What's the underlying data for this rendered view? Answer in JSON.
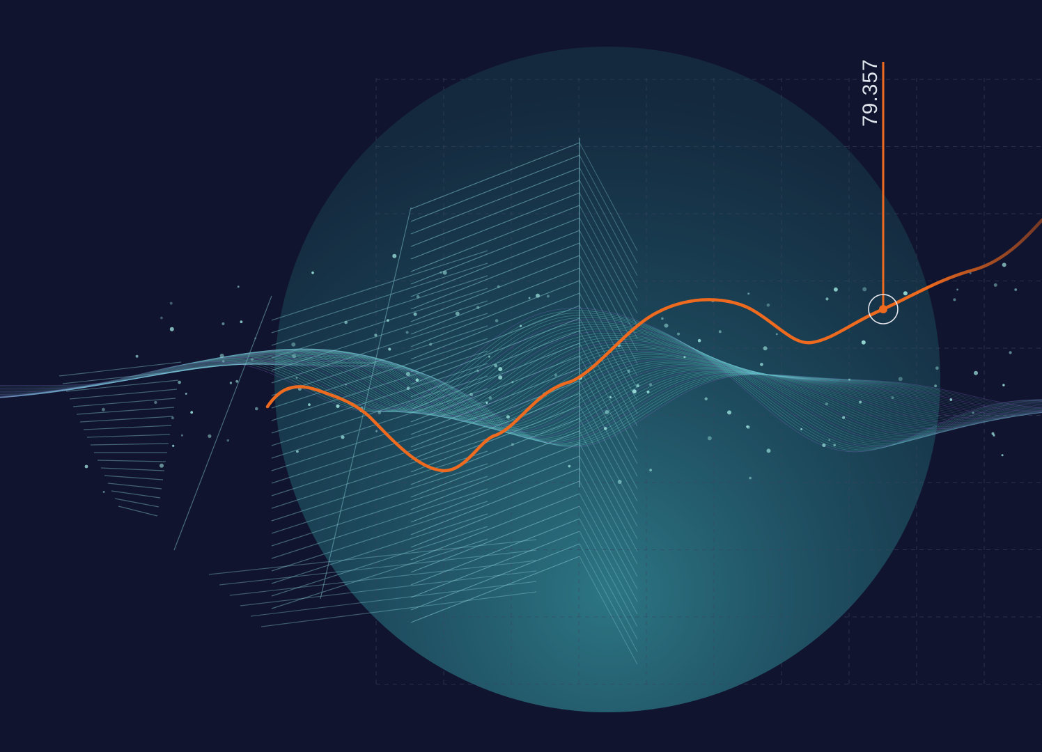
{
  "illustration": {
    "marker_value": "79.357",
    "colors": {
      "background": "#11142f",
      "sphere": "#2f7f8c",
      "grid": "#3a4460",
      "wave": "#5fd0c8",
      "wave_accent": "#8a6fd0",
      "building_lines": "#7fc4cc",
      "trend_line": "#ee6a1e",
      "marker_ring": "#e8e8ee",
      "label_text": "#dfe3ea"
    },
    "icons": {
      "marker": "target-ring-icon"
    }
  }
}
